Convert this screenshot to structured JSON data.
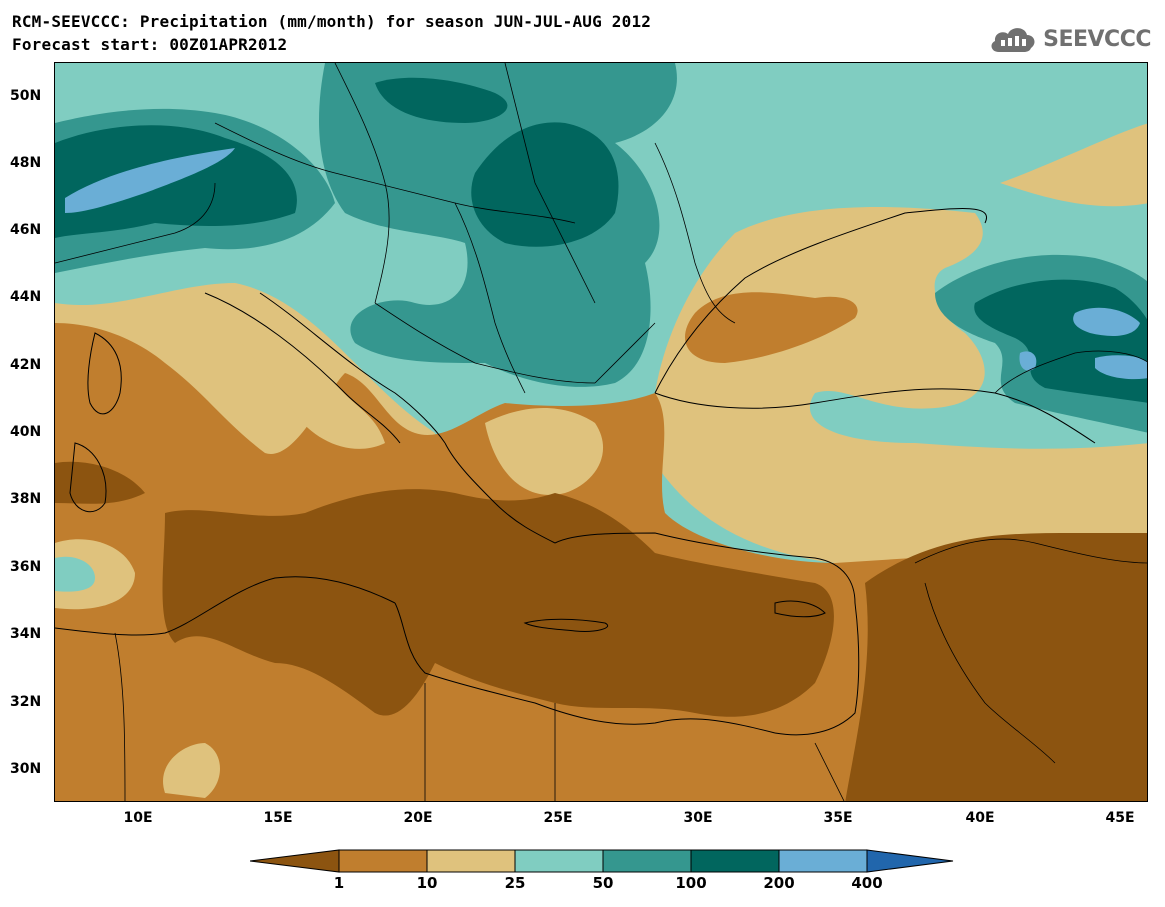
{
  "title": {
    "line1": "RCM-SEEVCCC: Precipitation (mm/month) for season JUN-JUL-AUG 2012",
    "line2": "Forecast start: 00Z01APR2012"
  },
  "logo": {
    "text": "SEEVCCC",
    "icon": "cloud-icon"
  },
  "axes": {
    "lat_labels": [
      "50N",
      "48N",
      "46N",
      "44N",
      "42N",
      "40N",
      "38N",
      "36N",
      "34N",
      "32N",
      "30N"
    ],
    "lon_labels": [
      "10E",
      "15E",
      "20E",
      "25E",
      "30E",
      "35E",
      "40E",
      "45E"
    ],
    "lat_range": [
      29,
      51
    ],
    "lon_range": [
      7,
      46
    ]
  },
  "colorbar": {
    "levels": [
      "1",
      "10",
      "25",
      "50",
      "100",
      "200",
      "400"
    ],
    "colors": {
      "below_1": "#8c5410",
      "c1_10": "#c07e2e",
      "c10_25": "#dfc27d",
      "c25_50": "#80cdc1",
      "c50_100": "#35978f",
      "c100_200": "#01665e",
      "c200_400": "#6aaed6",
      "above_400": "#2166ac"
    }
  }
}
